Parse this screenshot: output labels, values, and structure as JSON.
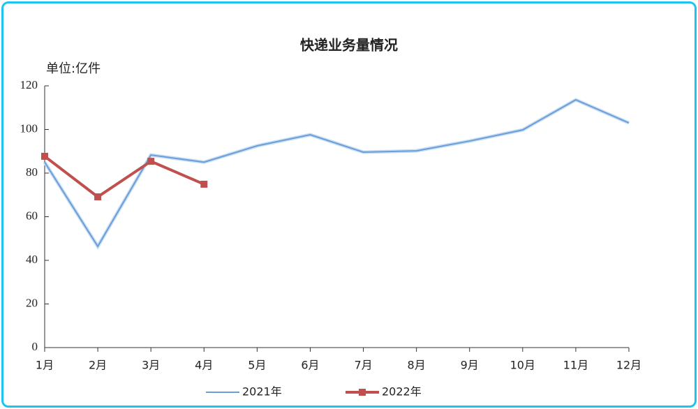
{
  "chart_data": {
    "type": "line",
    "title": "快递业务量情况",
    "y_label": "单位:亿件",
    "categories": [
      "1月",
      "2月",
      "3月",
      "4月",
      "5月",
      "6月",
      "7月",
      "8月",
      "9月",
      "10月",
      "11月",
      "12月"
    ],
    "series": [
      {
        "name": "2021年",
        "color": "#6a9ed8",
        "values": [
          85,
          46.4,
          88.3,
          85,
          92.5,
          97.6,
          89.6,
          90.2,
          94.7,
          99.8,
          113.6,
          103
        ]
      },
      {
        "name": "2022年",
        "color": "#c0504d",
        "values": [
          87.7,
          69.1,
          85.4,
          74.9,
          null,
          null,
          null,
          null,
          null,
          null,
          null,
          null
        ]
      }
    ],
    "ylim": [
      0,
      120
    ],
    "yticks": [
      0,
      20,
      40,
      60,
      80,
      100,
      120
    ]
  }
}
